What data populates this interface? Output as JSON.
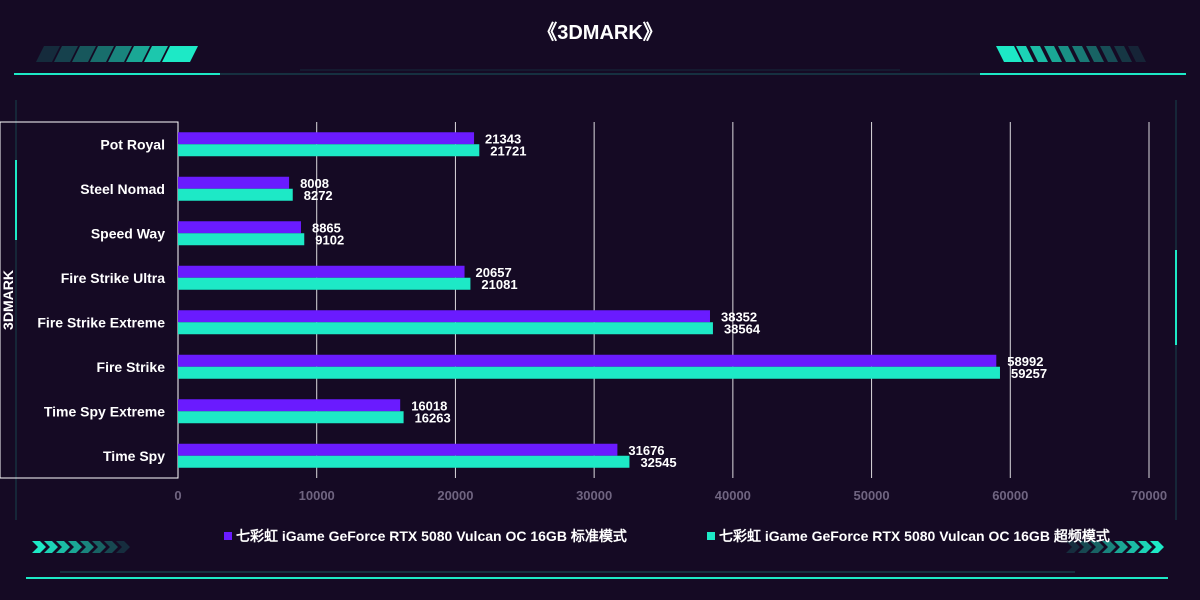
{
  "page": {
    "title": "《3DMARK》",
    "background": "#150a24",
    "accent": "#1de9c6"
  },
  "chart_data": {
    "type": "bar",
    "orientation": "horizontal",
    "title": "《3DMARK》",
    "ylabel": "3DMARK",
    "xlabel": "",
    "categories": [
      "Pot Royal",
      "Steel Nomad",
      "Speed Way",
      "Fire Strike Ultra",
      "Fire Strike Extreme",
      "Fire Strike",
      "Time Spy Extreme",
      "Time Spy"
    ],
    "series": [
      {
        "name": "七彩虹 iGame GeForce RTX 5080 Vulcan OC 16GB 标准模式",
        "color": "#6a1bff",
        "values": [
          21343,
          8008,
          8865,
          20657,
          38352,
          58992,
          16018,
          31676
        ]
      },
      {
        "name": "七彩虹 iGame GeForce RTX 5080 Vulcan OC 16GB 超频模式",
        "color": "#1de9c6",
        "values": [
          21721,
          8272,
          9102,
          21081,
          38564,
          59257,
          16263,
          32545
        ]
      }
    ],
    "xlim": [
      0,
      70000
    ],
    "xticks": [
      0,
      10000,
      20000,
      30000,
      40000,
      50000,
      60000,
      70000
    ],
    "grid": true,
    "legend_position": "bottom",
    "data_labels": true
  }
}
